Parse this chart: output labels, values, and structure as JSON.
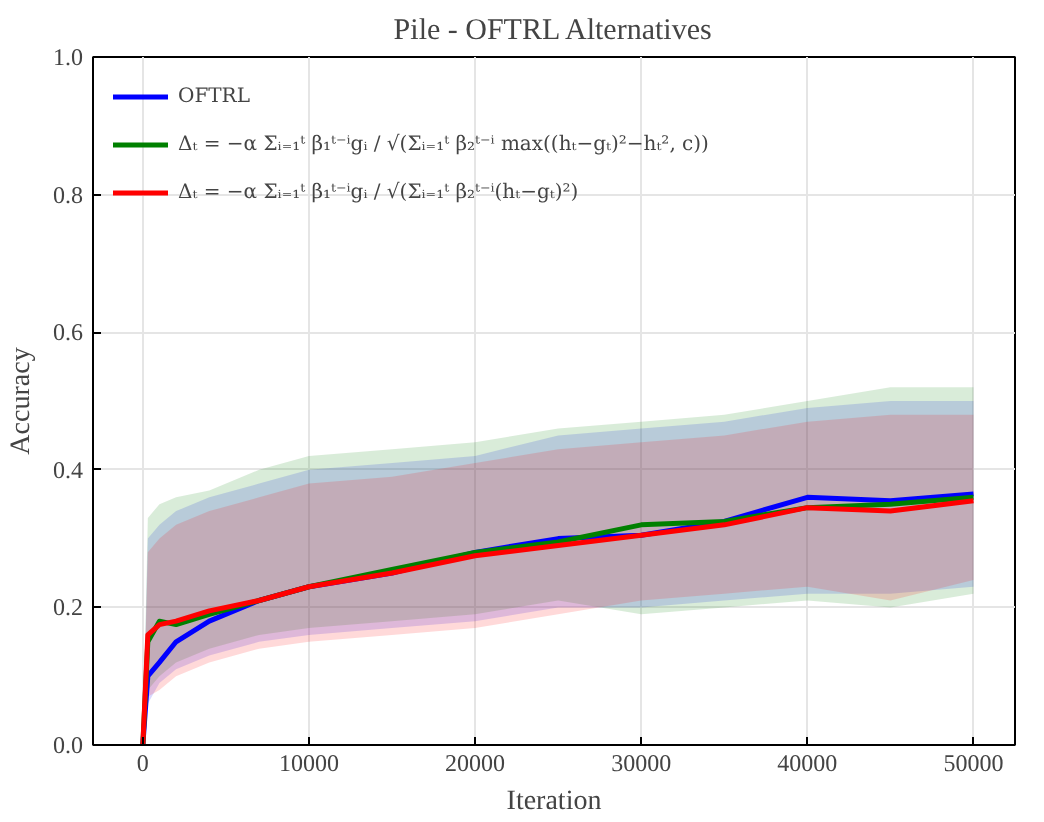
{
  "chart_data": {
    "type": "line",
    "title": "Pile - OFTRL Alternatives",
    "xlabel": "Iteration",
    "ylabel": "Accuracy",
    "x": [
      0,
      300,
      1000,
      2000,
      4000,
      7000,
      10000,
      15000,
      20000,
      25000,
      30000,
      35000,
      40000,
      45000,
      50000
    ],
    "series": [
      {
        "name": "OFTRL",
        "color": "#0000ff",
        "values": [
          0,
          0.1,
          0.12,
          0.15,
          0.18,
          0.21,
          0.23,
          0.25,
          0.28,
          0.3,
          0.305,
          0.325,
          0.36,
          0.355,
          0.365
        ],
        "lower": [
          0,
          0.06,
          0.09,
          0.11,
          0.13,
          0.15,
          0.16,
          0.17,
          0.18,
          0.2,
          0.2,
          0.21,
          0.22,
          0.22,
          0.23
        ],
        "upper": [
          0,
          0.3,
          0.32,
          0.34,
          0.36,
          0.38,
          0.4,
          0.41,
          0.42,
          0.45,
          0.46,
          0.47,
          0.49,
          0.5,
          0.5
        ]
      },
      {
        "name": "Δₜ = −α Σᵢ₌₁ᵗ β₁ᵗ⁻ⁱgᵢ / √(Σᵢ₌₁ᵗ β₂ᵗ⁻ⁱ max((hₜ−gₜ)²−hₜ², c))",
        "color": "#008000",
        "values": [
          0,
          0.15,
          0.18,
          0.175,
          0.19,
          0.21,
          0.23,
          0.255,
          0.28,
          0.295,
          0.32,
          0.325,
          0.345,
          0.35,
          0.36
        ],
        "lower": [
          0,
          0.08,
          0.1,
          0.12,
          0.14,
          0.16,
          0.17,
          0.18,
          0.19,
          0.21,
          0.19,
          0.2,
          0.21,
          0.2,
          0.22
        ],
        "upper": [
          0,
          0.33,
          0.35,
          0.36,
          0.37,
          0.4,
          0.42,
          0.43,
          0.44,
          0.46,
          0.47,
          0.48,
          0.5,
          0.52,
          0.52
        ]
      },
      {
        "name": "Δₜ = −α Σᵢ₌₁ᵗ β₁ᵗ⁻ⁱgᵢ / √(Σᵢ₌₁ᵗ β₂ᵗ⁻ⁱ(hₜ−gₜ)²)",
        "color": "#ff0000",
        "values": [
          0,
          0.16,
          0.175,
          0.18,
          0.195,
          0.21,
          0.23,
          0.25,
          0.275,
          0.29,
          0.305,
          0.32,
          0.345,
          0.34,
          0.355
        ],
        "lower": [
          0,
          0.07,
          0.08,
          0.1,
          0.12,
          0.14,
          0.15,
          0.16,
          0.17,
          0.19,
          0.21,
          0.22,
          0.23,
          0.21,
          0.24
        ],
        "upper": [
          0,
          0.28,
          0.3,
          0.32,
          0.34,
          0.36,
          0.38,
          0.39,
          0.41,
          0.43,
          0.44,
          0.45,
          0.47,
          0.48,
          0.48
        ]
      }
    ],
    "xlim": [
      -3000,
      52500
    ],
    "ylim": [
      0,
      1.0
    ],
    "xticks": [
      0,
      10000,
      20000,
      30000,
      40000,
      50000
    ],
    "yticks": [
      {
        "value": 0,
        "label": "0.0"
      },
      {
        "value": 0.2,
        "label": "0.2"
      },
      {
        "value": 0.4,
        "label": "0.4"
      },
      {
        "value": 0.6,
        "label": "0.6"
      },
      {
        "value": 0.8,
        "label": "0.8"
      },
      {
        "value": 1.0,
        "label": "1.0"
      }
    ],
    "grid": true,
    "legend": "top left",
    "marker": "none",
    "line_style": "solid"
  }
}
